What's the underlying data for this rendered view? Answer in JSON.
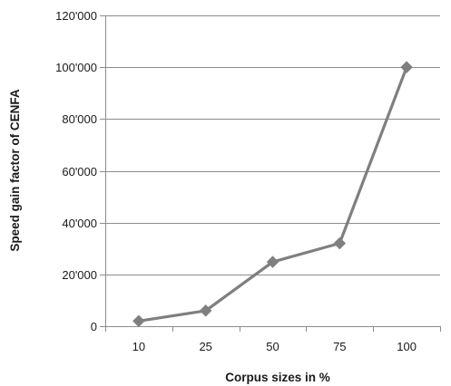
{
  "chart_data": {
    "type": "line",
    "title": "",
    "xlabel": "Corpus sizes in %",
    "ylabel": "Speed gain factor of CENFA",
    "categories": [
      "10",
      "25",
      "50",
      "75",
      "100"
    ],
    "series": [
      {
        "values": [
          2000,
          6000,
          24800,
          32000,
          100000
        ],
        "color": "#7f7f7f",
        "marker": "diamond"
      }
    ],
    "ylim": [
      0,
      120000
    ],
    "yticks": [
      0,
      20000,
      40000,
      60000,
      80000,
      100000,
      120000
    ],
    "ytick_labels": [
      "0",
      "20'000",
      "40'000",
      "60'000",
      "80'000",
      "100'000",
      "120'000"
    ],
    "grid": {
      "horizontal": true,
      "vertical": false,
      "color": "#8c8c8c"
    },
    "legend": "none"
  }
}
